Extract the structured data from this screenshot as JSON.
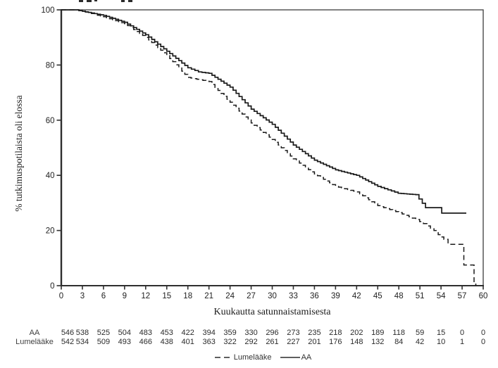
{
  "chart_data": {
    "type": "line",
    "subtype": "kaplan-meier-step",
    "title": "",
    "xlabel": "Kuukautta satunnaistamisesta",
    "ylabel": "% tutkimuspotilaista oli elossa",
    "xlim": [
      0,
      60
    ],
    "ylim": [
      0,
      100
    ],
    "x_ticks": [
      0,
      3,
      6,
      9,
      12,
      15,
      18,
      21,
      24,
      27,
      30,
      33,
      36,
      39,
      42,
      45,
      48,
      51,
      54,
      57,
      60
    ],
    "y_ticks": [
      0,
      20,
      40,
      60,
      80,
      100
    ],
    "grid": false,
    "line_color": "#1a1a1a",
    "legend_position": "bottom-center",
    "series": [
      {
        "name": "AA",
        "style": "solid",
        "points": [
          [
            0,
            100
          ],
          [
            2,
            100
          ],
          [
            3,
            99.5
          ],
          [
            6,
            98
          ],
          [
            9,
            95.5
          ],
          [
            12,
            91
          ],
          [
            15,
            85
          ],
          [
            18,
            79
          ],
          [
            19.5,
            77.5
          ],
          [
            21,
            77
          ],
          [
            24,
            72
          ],
          [
            27,
            64
          ],
          [
            30,
            58.5
          ],
          [
            33,
            51
          ],
          [
            36,
            45.5
          ],
          [
            39,
            42
          ],
          [
            42,
            40
          ],
          [
            45,
            36
          ],
          [
            47.9,
            33.5
          ],
          [
            50.4,
            33
          ],
          [
            51.8,
            28.3
          ],
          [
            53.9,
            28.3
          ],
          [
            54.1,
            26.3
          ],
          [
            57.6,
            26.3
          ]
        ]
      },
      {
        "name": "Lumelääke",
        "style": "dashed",
        "points": [
          [
            0,
            100
          ],
          [
            2,
            100
          ],
          [
            3,
            99.5
          ],
          [
            6,
            97.5
          ],
          [
            9,
            95
          ],
          [
            12,
            90
          ],
          [
            15,
            83.5
          ],
          [
            18,
            75.5
          ],
          [
            21,
            74
          ],
          [
            24,
            66.5
          ],
          [
            27,
            59
          ],
          [
            30,
            53
          ],
          [
            33,
            46
          ],
          [
            36,
            40.5
          ],
          [
            39,
            36
          ],
          [
            42,
            34
          ],
          [
            45,
            29
          ],
          [
            48,
            26.5
          ],
          [
            50.4,
            24
          ],
          [
            51.5,
            22.5
          ],
          [
            53,
            20
          ],
          [
            53.6,
            18.5
          ],
          [
            54.4,
            16.8
          ],
          [
            55,
            15
          ],
          [
            57.1,
            15
          ],
          [
            57.25,
            7.5
          ],
          [
            58.55,
            7.5
          ],
          [
            58.7,
            1
          ],
          [
            58.9,
            1
          ],
          [
            58.95,
            0
          ]
        ]
      }
    ],
    "at_risk_table": {
      "row_labels": [
        "AA",
        "Lumelääke"
      ],
      "months": [
        0,
        3,
        6,
        9,
        12,
        15,
        18,
        21,
        24,
        27,
        30,
        33,
        36,
        39,
        42,
        45,
        48,
        51,
        54,
        57,
        60
      ],
      "rows": [
        [
          546,
          538,
          525,
          504,
          483,
          453,
          422,
          394,
          359,
          330,
          296,
          273,
          235,
          218,
          202,
          189,
          118,
          59,
          15,
          0,
          0
        ],
        [
          542,
          534,
          509,
          493,
          466,
          438,
          401,
          363,
          322,
          292,
          261,
          227,
          201,
          176,
          148,
          132,
          84,
          42,
          10,
          1,
          0
        ]
      ]
    },
    "legend": [
      {
        "label": "Lumelääke",
        "line": "dashed"
      },
      {
        "label": "AA",
        "line": "solid"
      }
    ]
  }
}
